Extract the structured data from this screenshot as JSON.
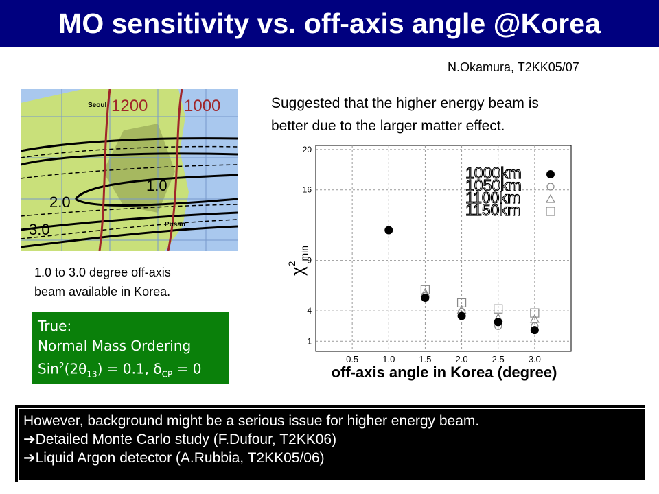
{
  "header": {
    "title": "MO sensitivity vs. off-axis angle @Korea"
  },
  "author": "N.Okamura, T2KK05/07",
  "map": {
    "labels": [
      "Seoul",
      "1200",
      "1000",
      "1.0",
      "2.0",
      "3.0",
      "Pusan"
    ]
  },
  "map_caption": [
    "1.0 to 3.0 degree off-axis",
    "beam available in Korea."
  ],
  "true_box": {
    "line1": "True:",
    "line2": "Normal Mass Ordering",
    "line3": {
      "a": "Sin",
      "sup": "2",
      "b": "(2θ",
      "sub": "13",
      "c": ") = 0.1,  δ",
      "sub2": "CP",
      "d": " = 0"
    }
  },
  "suggestion": [
    "Suggested that the higher energy beam is",
    "better due to the larger matter effect."
  ],
  "chart_data": {
    "type": "scatter",
    "xlabel": "off-axis angle in Korea (degree)",
    "ylabel": {
      "base": "χ",
      "sup": "2",
      "sub": "min"
    },
    "x": [
      1.0,
      1.5,
      2.0,
      2.5,
      3.0
    ],
    "series": [
      {
        "name": "1000km",
        "color": "#000000",
        "marker": "filled-circle",
        "values": [
          12.0,
          5.3,
          3.5,
          2.9,
          2.1
        ]
      },
      {
        "name": "1050km",
        "color": "#888888",
        "marker": "circle",
        "values": [
          null,
          5.5,
          3.9,
          2.5,
          2.5
        ]
      },
      {
        "name": "1100km",
        "color": "#888888",
        "marker": "triangle",
        "values": [
          null,
          5.8,
          4.1,
          3.3,
          3.2
        ]
      },
      {
        "name": "1150km",
        "color": "#888888",
        "marker": "square",
        "values": [
          null,
          6.1,
          4.8,
          4.2,
          3.8
        ]
      }
    ],
    "xlim": [
      0,
      3.5
    ],
    "xticks": [
      0.5,
      {
        "value": 1,
        "label": "1.0"
      },
      1.5,
      {
        "value": 2,
        "label": "2.0"
      },
      2.5,
      {
        "value": 3,
        "label": "3.0"
      }
    ],
    "ylim": [
      0,
      20.4
    ],
    "yticks": [
      1,
      4,
      9,
      16,
      20
    ],
    "grid": true,
    "legend": "upper right"
  },
  "bottom_box": [
    "However, background might be a serious issue for higher energy beam.",
    "➔Detailed Monte Carlo study (F.Dufour, T2KK06)",
    "➔Liquid Argon detector (A.Rubbia, T2KK05/06)"
  ]
}
